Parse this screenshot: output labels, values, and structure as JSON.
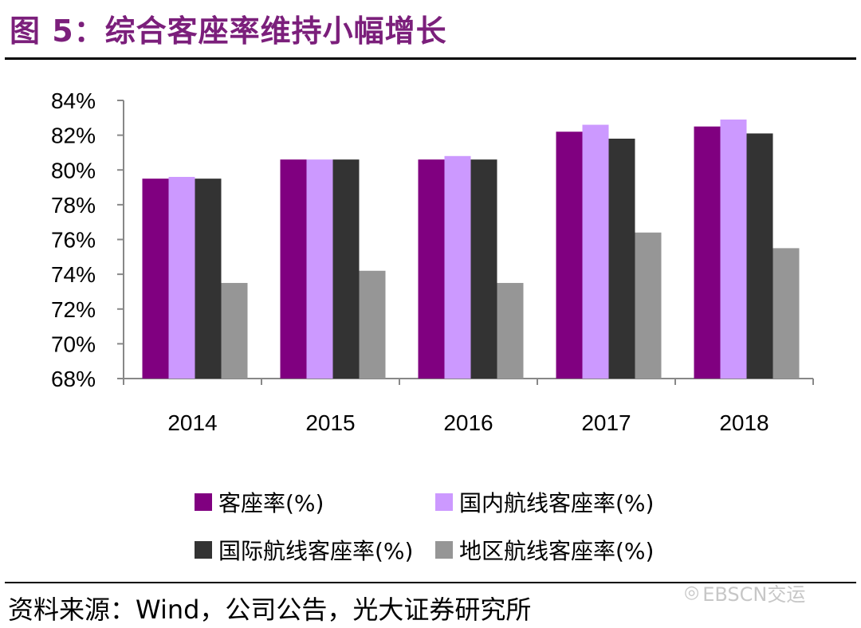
{
  "title": "图 5：综合客座率维持小幅增长",
  "source": "资料来源：Wind，公司公告，光大证券研究所",
  "watermark": {
    "icon": "wechat-icon",
    "text": "EBSCN交运"
  },
  "chart_data": {
    "type": "bar",
    "title": "综合客座率维持小幅增长",
    "categories": [
      "2014",
      "2015",
      "2016",
      "2017",
      "2018"
    ],
    "ylim": [
      68,
      84
    ],
    "yticks": [
      68,
      70,
      72,
      74,
      76,
      78,
      80,
      82,
      84
    ],
    "ytick_labels": [
      "68%",
      "70%",
      "72%",
      "74%",
      "76%",
      "78%",
      "80%",
      "82%",
      "84%"
    ],
    "series": [
      {
        "name": "客座率(%)",
        "color": "#800080",
        "values": [
          79.5,
          80.6,
          80.6,
          82.2,
          82.5
        ]
      },
      {
        "name": "国内航线客座率(%)",
        "color": "#cc99ff",
        "values": [
          79.6,
          80.6,
          80.8,
          82.6,
          82.9
        ]
      },
      {
        "name": "国际航线客座率(%)",
        "color": "#333333",
        "values": [
          79.5,
          80.6,
          80.6,
          81.8,
          82.1
        ]
      },
      {
        "name": "地区航线客座率(%)",
        "color": "#969696",
        "values": [
          73.5,
          74.2,
          73.5,
          76.4,
          75.5
        ]
      }
    ],
    "legend_position": "bottom",
    "xlabel": "",
    "ylabel": ""
  }
}
